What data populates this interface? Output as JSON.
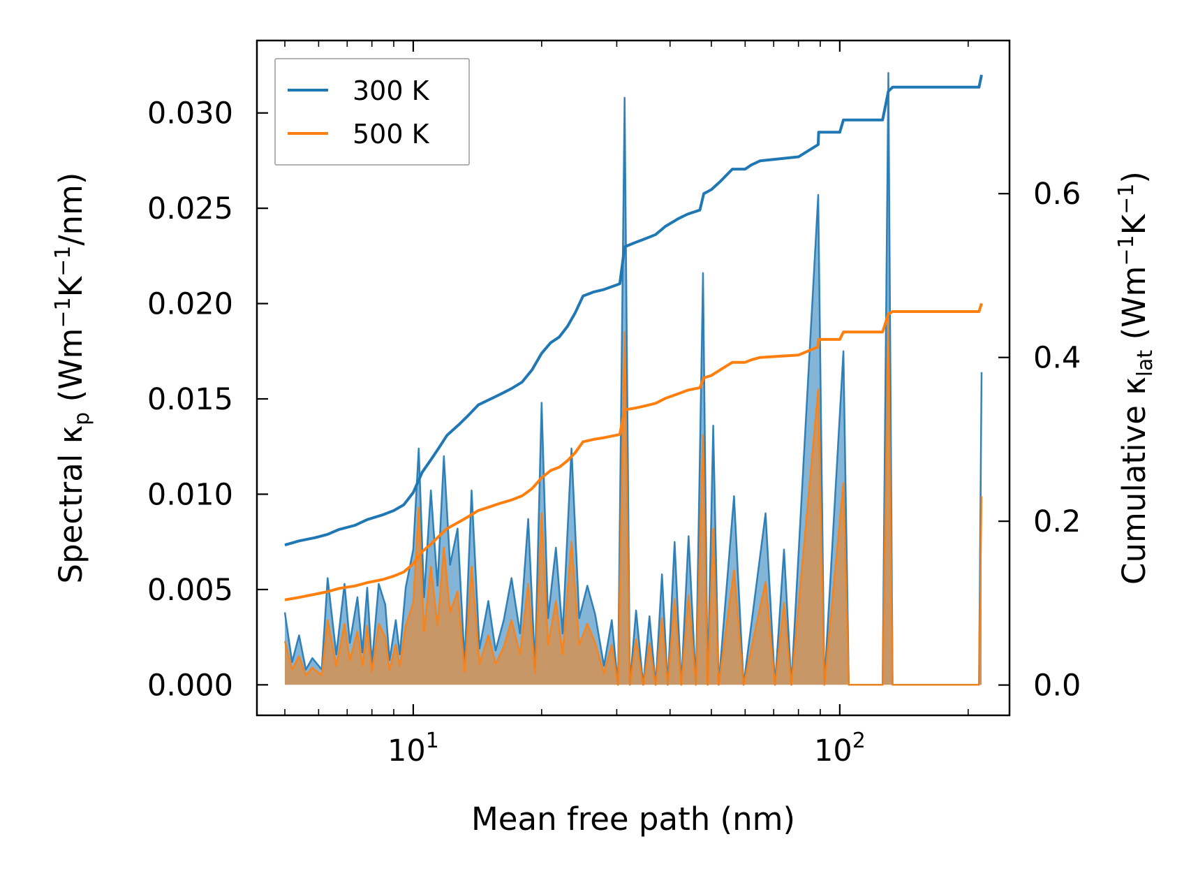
{
  "chart_data": {
    "type": "line",
    "x_scale": "log",
    "xlim": [
      4.3,
      250
    ],
    "xlabel": "Mean free path (nm)",
    "x_ticks": [
      {
        "value": 10,
        "base": "10",
        "exp": "1"
      },
      {
        "value": 100,
        "base": "10",
        "exp": "2"
      }
    ],
    "left_axis": {
      "label_prefix": "Spectral κ",
      "label_sub": "p",
      "label_units_open": " (Wm",
      "label_units_s1": "−1",
      "label_units_mid": "K",
      "label_units_s2": "−1",
      "label_units_close": "/nm)",
      "ylim": [
        -0.0016,
        0.0338
      ],
      "ticks": [
        {
          "value": 0.0,
          "label": "0.000"
        },
        {
          "value": 0.005,
          "label": "0.005"
        },
        {
          "value": 0.01,
          "label": "0.010"
        },
        {
          "value": 0.015,
          "label": "0.015"
        },
        {
          "value": 0.02,
          "label": "0.020"
        },
        {
          "value": 0.025,
          "label": "0.025"
        },
        {
          "value": 0.03,
          "label": "0.030"
        }
      ]
    },
    "right_axis": {
      "label_prefix": "Cumulative κ",
      "label_sub": "lat",
      "label_units_open": " (Wm",
      "label_units_s1": "−1",
      "label_units_mid": "K",
      "label_units_s2": "−1",
      "label_units_close": ")",
      "ylim": [
        -0.037,
        0.787
      ],
      "ticks": [
        {
          "value": 0.0,
          "label": "0.0"
        },
        {
          "value": 0.2,
          "label": "0.2"
        },
        {
          "value": 0.4,
          "label": "0.4"
        },
        {
          "value": 0.6,
          "label": "0.6"
        }
      ]
    },
    "legend": {
      "position": "top-left",
      "entries": [
        "300 K",
        "500 K"
      ]
    },
    "colors": {
      "s300": "#1f77b4",
      "s500": "#ff7f0e"
    },
    "spectral": {
      "300 K": [
        [
          5,
          0.0038
        ],
        [
          5.2,
          0.0012
        ],
        [
          5.4,
          0.0026
        ],
        [
          5.6,
          0.0008
        ],
        [
          5.8,
          0.0014
        ],
        [
          6.1,
          0.0008
        ],
        [
          6.3,
          0.0056
        ],
        [
          6.6,
          0.0016
        ],
        [
          6.9,
          0.0053
        ],
        [
          7.1,
          0.0022
        ],
        [
          7.4,
          0.0046
        ],
        [
          7.6,
          0.0017
        ],
        [
          7.8,
          0.0051
        ],
        [
          8.0,
          0.0011
        ],
        [
          8.3,
          0.0053
        ],
        [
          8.6,
          0.0042
        ],
        [
          8.8,
          0.0013
        ],
        [
          9.1,
          0.0034
        ],
        [
          9.3,
          0.0016
        ],
        [
          9.6,
          0.0051
        ],
        [
          10.0,
          0.0071
        ],
        [
          10.3,
          0.0124
        ],
        [
          10.6,
          0.0046
        ],
        [
          11.0,
          0.0102
        ],
        [
          11.4,
          0.0052
        ],
        [
          11.8,
          0.012
        ],
        [
          12.2,
          0.0063
        ],
        [
          12.7,
          0.0082
        ],
        [
          13.2,
          0.0012
        ],
        [
          13.7,
          0.0102
        ],
        [
          14.3,
          0.0019
        ],
        [
          15.0,
          0.0044
        ],
        [
          15.6,
          0.0018
        ],
        [
          16.3,
          0.0034
        ],
        [
          17.0,
          0.0056
        ],
        [
          17.8,
          0.0027
        ],
        [
          18.6,
          0.0087
        ],
        [
          19.3,
          0.001
        ],
        [
          20.0,
          0.0148
        ],
        [
          20.7,
          0.0035
        ],
        [
          21.6,
          0.0072
        ],
        [
          22.4,
          0.0027
        ],
        [
          23.5,
          0.0124
        ],
        [
          24.5,
          0.0035
        ],
        [
          25.6,
          0.0052
        ],
        [
          26.7,
          0.0037
        ],
        [
          28,
          0.001
        ],
        [
          29.2,
          0.0034
        ],
        [
          30.2,
          0.0
        ],
        [
          31.3,
          0.0308
        ],
        [
          32.2,
          0.0
        ],
        [
          33.3,
          0.0039
        ],
        [
          34.6,
          0.0
        ],
        [
          35.8,
          0.0036
        ],
        [
          37.0,
          0.0
        ],
        [
          38.3,
          0.0058
        ],
        [
          39.5,
          0.0
        ],
        [
          41,
          0.0075
        ],
        [
          42.5,
          0.0
        ],
        [
          44.2,
          0.0078
        ],
        [
          46.0,
          0.0
        ],
        [
          47.8,
          0.0216
        ],
        [
          49.0,
          0.0
        ],
        [
          50.5,
          0.0136
        ],
        [
          52.0,
          0.0
        ],
        [
          56.5,
          0.0099
        ],
        [
          59.5,
          0.0
        ],
        [
          67,
          0.009
        ],
        [
          70.5,
          0.0
        ],
        [
          74,
          0.0071
        ],
        [
          77,
          0.0
        ],
        [
          89,
          0.0257
        ],
        [
          92,
          0.0
        ],
        [
          102,
          0.0175
        ],
        [
          105,
          0.0
        ],
        [
          126,
          0.0
        ],
        [
          130,
          0.0321
        ],
        [
          133,
          0.0
        ],
        [
          212,
          0.0
        ],
        [
          215,
          0.0164
        ]
      ],
      "500 K": [
        [
          5,
          0.0023
        ],
        [
          5.2,
          0.0008
        ],
        [
          5.4,
          0.0015
        ],
        [
          5.6,
          0.0005
        ],
        [
          5.8,
          0.0009
        ],
        [
          6.1,
          0.0005
        ],
        [
          6.3,
          0.0034
        ],
        [
          6.6,
          0.001
        ],
        [
          6.9,
          0.0032
        ],
        [
          7.1,
          0.0013
        ],
        [
          7.4,
          0.0028
        ],
        [
          7.6,
          0.001
        ],
        [
          7.8,
          0.0031
        ],
        [
          8.0,
          0.0007
        ],
        [
          8.3,
          0.0032
        ],
        [
          8.6,
          0.0025
        ],
        [
          8.8,
          0.0008
        ],
        [
          9.1,
          0.0021
        ],
        [
          9.3,
          0.001
        ],
        [
          9.6,
          0.0031
        ],
        [
          10.0,
          0.0043
        ],
        [
          10.3,
          0.0093
        ],
        [
          10.6,
          0.0028
        ],
        [
          11.0,
          0.0062
        ],
        [
          11.4,
          0.0031
        ],
        [
          11.8,
          0.0072
        ],
        [
          12.2,
          0.0038
        ],
        [
          12.7,
          0.0049
        ],
        [
          13.2,
          0.0007
        ],
        [
          13.7,
          0.0062
        ],
        [
          14.3,
          0.0011
        ],
        [
          15.0,
          0.0026
        ],
        [
          15.6,
          0.0011
        ],
        [
          16.3,
          0.002
        ],
        [
          17.0,
          0.0034
        ],
        [
          17.8,
          0.0016
        ],
        [
          18.6,
          0.0053
        ],
        [
          19.3,
          0.0006
        ],
        [
          20.0,
          0.009
        ],
        [
          20.7,
          0.0021
        ],
        [
          21.6,
          0.0044
        ],
        [
          22.4,
          0.0016
        ],
        [
          23.5,
          0.0075
        ],
        [
          24.5,
          0.0021
        ],
        [
          25.6,
          0.0032
        ],
        [
          26.7,
          0.0022
        ],
        [
          28,
          0.0006
        ],
        [
          29.2,
          0.0021
        ],
        [
          30.2,
          0.0
        ],
        [
          31.3,
          0.0185
        ],
        [
          32.2,
          0.0
        ],
        [
          33.3,
          0.0024
        ],
        [
          34.6,
          0.0
        ],
        [
          35.8,
          0.0022
        ],
        [
          37.0,
          0.0
        ],
        [
          38.3,
          0.0035
        ],
        [
          39.5,
          0.0
        ],
        [
          41,
          0.0045
        ],
        [
          42.5,
          0.0
        ],
        [
          44.2,
          0.0047
        ],
        [
          46.0,
          0.0
        ],
        [
          47.8,
          0.0131
        ],
        [
          49.0,
          0.0
        ],
        [
          50.5,
          0.0082
        ],
        [
          52.0,
          0.0
        ],
        [
          56.5,
          0.006
        ],
        [
          59.5,
          0.0
        ],
        [
          67,
          0.0054
        ],
        [
          70.5,
          0.0
        ],
        [
          74,
          0.0043
        ],
        [
          77,
          0.0
        ],
        [
          89,
          0.0155
        ],
        [
          92,
          0.0
        ],
        [
          102,
          0.0106
        ],
        [
          105,
          0.0
        ],
        [
          126,
          0.0
        ],
        [
          130,
          0.0194
        ],
        [
          133,
          0.0
        ],
        [
          212,
          0.0
        ],
        [
          215,
          0.0099
        ]
      ]
    },
    "cumulative": {
      "300 K": [
        [
          5,
          0.171
        ],
        [
          5.4,
          0.176
        ],
        [
          5.9,
          0.18
        ],
        [
          6.3,
          0.184
        ],
        [
          6.7,
          0.19
        ],
        [
          7.3,
          0.195
        ],
        [
          7.8,
          0.202
        ],
        [
          8.5,
          0.208
        ],
        [
          9.0,
          0.213
        ],
        [
          9.5,
          0.22
        ],
        [
          10.0,
          0.235
        ],
        [
          10.5,
          0.26
        ],
        [
          11.0,
          0.275
        ],
        [
          11.5,
          0.29
        ],
        [
          12.0,
          0.305
        ],
        [
          12.8,
          0.318
        ],
        [
          13.5,
          0.33
        ],
        [
          14.2,
          0.342
        ],
        [
          15.0,
          0.348
        ],
        [
          16.0,
          0.355
        ],
        [
          17.0,
          0.362
        ],
        [
          18.0,
          0.37
        ],
        [
          19.0,
          0.385
        ],
        [
          20.0,
          0.405
        ],
        [
          21.0,
          0.418
        ],
        [
          22.0,
          0.425
        ],
        [
          23.0,
          0.438
        ],
        [
          24.0,
          0.455
        ],
        [
          25.0,
          0.475
        ],
        [
          26.5,
          0.48
        ],
        [
          28.0,
          0.483
        ],
        [
          30.5,
          0.49
        ],
        [
          31.3,
          0.535
        ],
        [
          33.0,
          0.54
        ],
        [
          35.0,
          0.545
        ],
        [
          37.0,
          0.55
        ],
        [
          39.0,
          0.56
        ],
        [
          42.0,
          0.57
        ],
        [
          44.0,
          0.575
        ],
        [
          47.0,
          0.58
        ],
        [
          48.0,
          0.6
        ],
        [
          50.0,
          0.605
        ],
        [
          52.5,
          0.615
        ],
        [
          56,
          0.63
        ],
        [
          60,
          0.63
        ],
        [
          62,
          0.635
        ],
        [
          65,
          0.64
        ],
        [
          80,
          0.645
        ],
        [
          89,
          0.66
        ],
        [
          89.2,
          0.675
        ],
        [
          100,
          0.675
        ],
        [
          102,
          0.69
        ],
        [
          126,
          0.69
        ],
        [
          130,
          0.725
        ],
        [
          133,
          0.73
        ],
        [
          212,
          0.73
        ],
        [
          215,
          0.745
        ]
      ],
      "500 K": [
        [
          5,
          0.104
        ],
        [
          5.4,
          0.107
        ],
        [
          5.9,
          0.111
        ],
        [
          6.3,
          0.114
        ],
        [
          6.7,
          0.118
        ],
        [
          7.3,
          0.121
        ],
        [
          7.8,
          0.125
        ],
        [
          8.5,
          0.129
        ],
        [
          9.0,
          0.133
        ],
        [
          9.5,
          0.138
        ],
        [
          10.0,
          0.148
        ],
        [
          10.5,
          0.163
        ],
        [
          11.0,
          0.172
        ],
        [
          11.5,
          0.182
        ],
        [
          12.0,
          0.191
        ],
        [
          12.8,
          0.199
        ],
        [
          13.5,
          0.206
        ],
        [
          14.2,
          0.213
        ],
        [
          15.0,
          0.217
        ],
        [
          16.0,
          0.222
        ],
        [
          17.0,
          0.226
        ],
        [
          18.0,
          0.231
        ],
        [
          19.0,
          0.24
        ],
        [
          20.0,
          0.253
        ],
        [
          21.0,
          0.262
        ],
        [
          22.0,
          0.266
        ],
        [
          23.0,
          0.274
        ],
        [
          24.0,
          0.284
        ],
        [
          25.0,
          0.297
        ],
        [
          26.5,
          0.3
        ],
        [
          28.0,
          0.302
        ],
        [
          30.5,
          0.306
        ],
        [
          31.3,
          0.336
        ],
        [
          33.0,
          0.338
        ],
        [
          35.0,
          0.341
        ],
        [
          37.0,
          0.344
        ],
        [
          39.0,
          0.35
        ],
        [
          42.0,
          0.356
        ],
        [
          44.0,
          0.36
        ],
        [
          47.0,
          0.363
        ],
        [
          48.0,
          0.375
        ],
        [
          50.0,
          0.378
        ],
        [
          52.5,
          0.385
        ],
        [
          56,
          0.394
        ],
        [
          60,
          0.394
        ],
        [
          62,
          0.397
        ],
        [
          65,
          0.4
        ],
        [
          80,
          0.403
        ],
        [
          89,
          0.413
        ],
        [
          89.2,
          0.422
        ],
        [
          100,
          0.422
        ],
        [
          102,
          0.431
        ],
        [
          126,
          0.431
        ],
        [
          130,
          0.453
        ],
        [
          133,
          0.456
        ],
        [
          212,
          0.456
        ],
        [
          215,
          0.466
        ]
      ]
    }
  }
}
